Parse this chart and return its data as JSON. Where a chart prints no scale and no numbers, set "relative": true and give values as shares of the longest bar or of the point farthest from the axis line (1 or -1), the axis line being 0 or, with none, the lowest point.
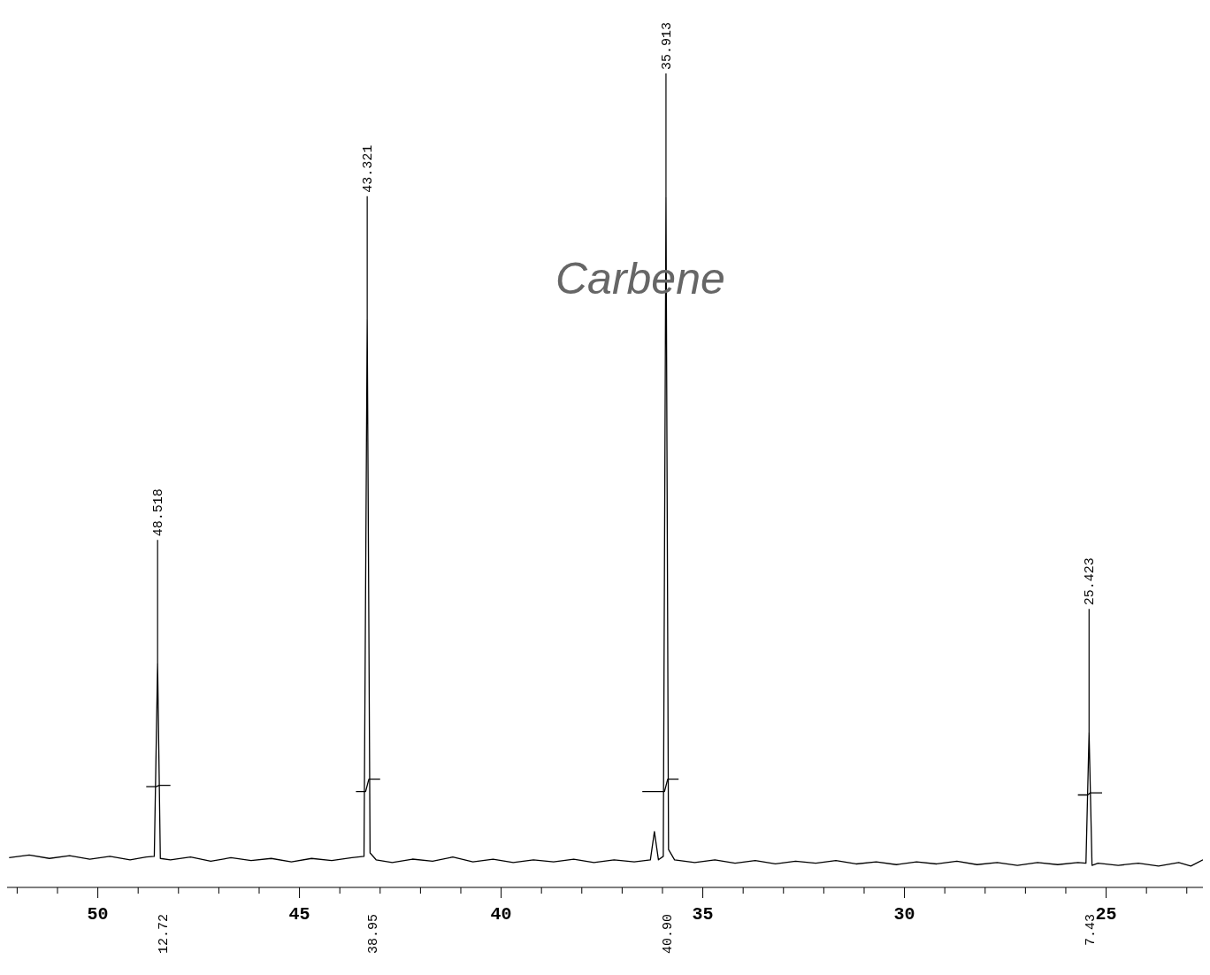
{
  "chart_data": {
    "type": "line",
    "relative": true,
    "xlim": [
      52.25,
      22.6
    ],
    "xticks": [
      {
        "value": 52,
        "label": null
      },
      {
        "value": 51,
        "label": null
      },
      50,
      {
        "value": 49,
        "label": null
      },
      {
        "value": 48,
        "label": null
      },
      {
        "value": 47,
        "label": null
      },
      {
        "value": 46,
        "label": null
      },
      45,
      {
        "value": 44,
        "label": null
      },
      {
        "value": 43,
        "label": null
      },
      {
        "value": 42,
        "label": null
      },
      {
        "value": 41,
        "label": null
      },
      40,
      {
        "value": 39,
        "label": null
      },
      {
        "value": 38,
        "label": null
      },
      {
        "value": 37,
        "label": null
      },
      {
        "value": 36,
        "label": null
      },
      35,
      {
        "value": 34,
        "label": null
      },
      {
        "value": 33,
        "label": null
      },
      {
        "value": 32,
        "label": null
      },
      {
        "value": 31,
        "label": null
      },
      30,
      {
        "value": 29,
        "label": null
      },
      {
        "value": 28,
        "label": null
      },
      {
        "value": 27,
        "label": null
      },
      {
        "value": 26,
        "label": null
      },
      25,
      {
        "value": 24,
        "label": null
      },
      {
        "value": 23,
        "label": null
      }
    ],
    "marker": "none",
    "line_style": "solid",
    "grid": false,
    "legend": false,
    "series": [
      {
        "color": "#000000",
        "x": [
          52.2,
          51.7,
          51.2,
          50.7,
          50.2,
          49.7,
          49.2,
          48.8,
          48.6,
          48.518,
          48.45,
          48.2,
          47.7,
          47.2,
          46.7,
          46.2,
          45.7,
          45.2,
          44.7,
          44.2,
          43.7,
          43.4,
          43.321,
          43.25,
          43.1,
          42.7,
          42.2,
          41.7,
          41.2,
          40.7,
          40.2,
          39.7,
          39.2,
          38.7,
          38.2,
          37.7,
          37.2,
          36.7,
          36.3,
          36.2,
          36.1,
          35.98,
          35.913,
          35.85,
          35.7,
          35.2,
          34.7,
          34.2,
          33.7,
          33.2,
          32.7,
          32.2,
          31.7,
          31.2,
          30.7,
          30.2,
          29.7,
          29.2,
          28.7,
          28.2,
          27.7,
          27.2,
          26.7,
          26.2,
          25.7,
          25.5,
          25.423,
          25.35,
          25.2,
          24.7,
          24.2,
          23.7,
          23.2,
          22.9,
          22.6
        ],
        "values": [
          0.043,
          0.047,
          0.042,
          0.046,
          0.041,
          0.045,
          0.04,
          0.044,
          0.045,
          0.324,
          0.042,
          0.04,
          0.044,
          0.038,
          0.043,
          0.039,
          0.042,
          0.037,
          0.042,
          0.039,
          0.043,
          0.045,
          0.822,
          0.05,
          0.04,
          0.036,
          0.041,
          0.038,
          0.044,
          0.037,
          0.041,
          0.036,
          0.04,
          0.037,
          0.041,
          0.036,
          0.04,
          0.037,
          0.04,
          0.081,
          0.04,
          0.045,
          1,
          0.055,
          0.04,
          0.036,
          0.04,
          0.035,
          0.039,
          0.034,
          0.038,
          0.035,
          0.039,
          0.034,
          0.037,
          0.033,
          0.037,
          0.034,
          0.038,
          0.033,
          0.036,
          0.032,
          0.036,
          0.033,
          0.036,
          0.035,
          0.224,
          0.032,
          0.035,
          0.032,
          0.035,
          0.031,
          0.036,
          0.031,
          0.04
        ]
      },
      {
        "color": "#000000",
        "x": [
          48.8,
          48.55,
          48.48,
          48.2,
          48.0,
          43.6,
          43.36,
          43.28,
          43.0,
          42.8,
          36.5,
          35.95,
          35.87,
          35.6,
          35.3,
          25.7,
          25.46,
          25.39,
          25.1,
          null
        ],
        "values": [
          0.146,
          0.146,
          0.148,
          0.148,
          null,
          0.139,
          0.139,
          0.157,
          0.157,
          null,
          0.139,
          0.139,
          0.157,
          0.157,
          null,
          0.134,
          0.134,
          0.137,
          0.137,
          null
        ]
      }
    ],
    "annotations": [
      "Carbene",
      {
        "text": "48.518",
        "x": 48.518,
        "y": 0.324
      },
      {
        "text": "43.321",
        "x": 43.321,
        "y": 0.822
      },
      {
        "text": "35.913",
        "x": 35.913,
        "y": 1
      },
      {
        "text": "25.423",
        "x": 25.423,
        "y": 0.224
      },
      "12.72",
      "38.95",
      "40.90",
      "7.43"
    ]
  }
}
